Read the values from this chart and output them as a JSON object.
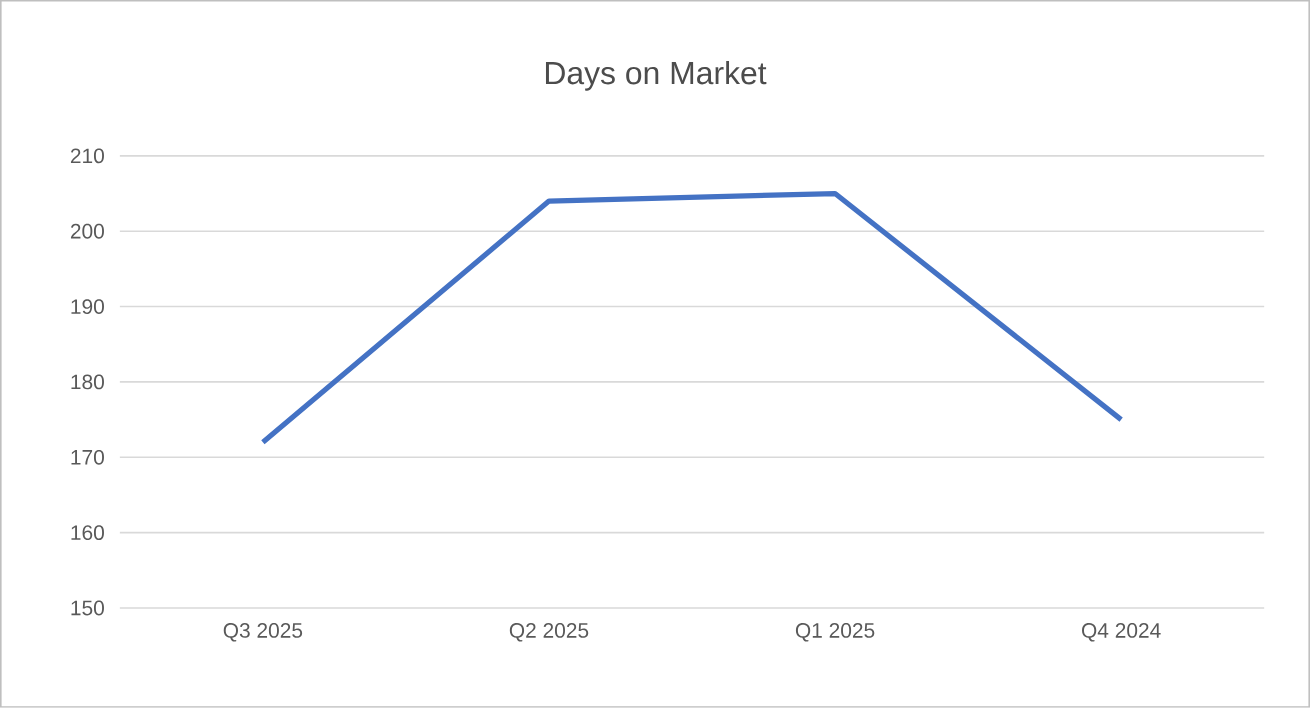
{
  "chart_data": {
    "type": "line",
    "title": "Days on Market",
    "categories": [
      "Q3 2025",
      "Q2 2025",
      "Q1 2025",
      "Q4 2024"
    ],
    "values": [
      172,
      204,
      205,
      175
    ],
    "color": "#4472c4",
    "ylim": [
      150,
      210
    ],
    "yticks": [
      150,
      160,
      170,
      180,
      190,
      200,
      210
    ],
    "grid": "y",
    "marker": "none",
    "line_style": "solid"
  }
}
